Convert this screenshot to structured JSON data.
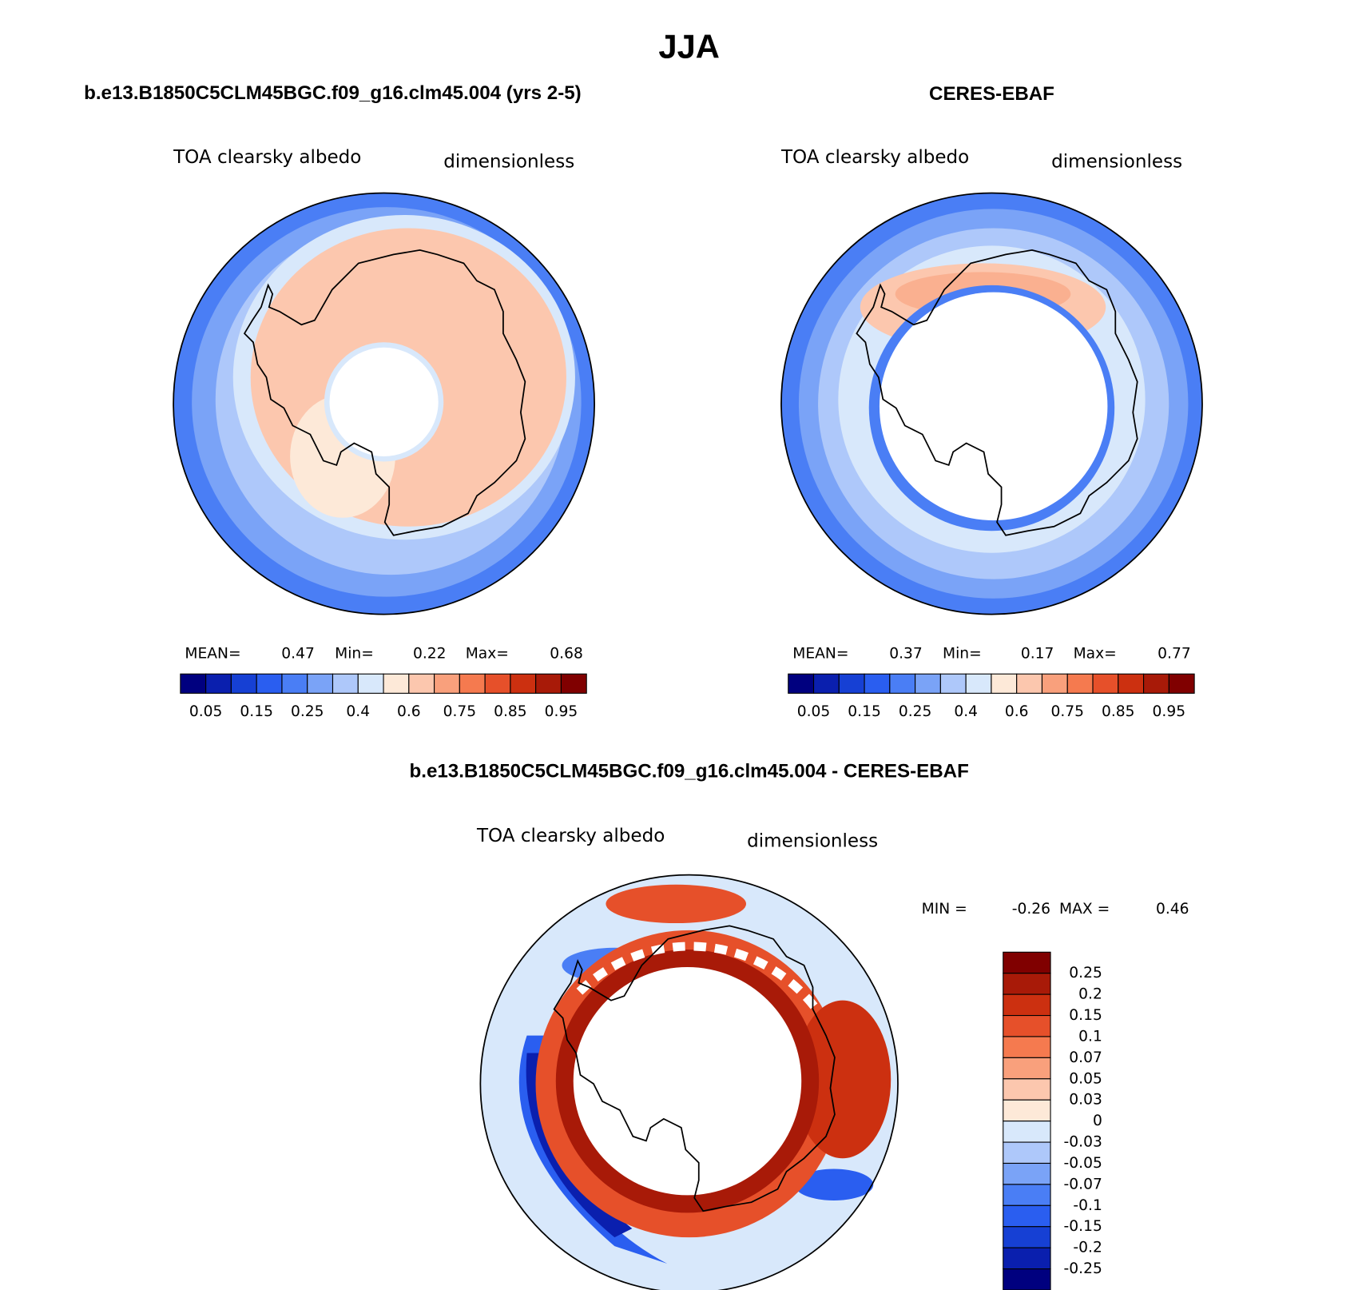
{
  "title": "JJA",
  "panels": [
    {
      "title": "b.e13.B1850C5CLM45BGC.f09_g16.clm45.004 (yrs 2-5)",
      "variable": "TOA clearsky albedo",
      "units": "dimensionless",
      "stats": {
        "mean_label": "MEAN=",
        "mean": 0.47,
        "min_label": "Min=",
        "min": 0.22,
        "max_label": "Max=",
        "max": 0.68
      },
      "colorbar": {
        "colors": [
          "#00007f",
          "#0a1fae",
          "#1640d4",
          "#2a5ef0",
          "#4a7ef5",
          "#7aa3f7",
          "#aec8fa",
          "#d8e8fb",
          "#fde9d8",
          "#fcc7ae",
          "#f9a07c",
          "#f57a4f",
          "#e6502a",
          "#cc3010",
          "#a81a08",
          "#800000"
        ],
        "labels": [
          0.05,
          0.15,
          0.25,
          0.4,
          0.6,
          0.75,
          0.85,
          0.95
        ]
      }
    },
    {
      "title": "CERES-EBAF",
      "variable": "TOA clearsky albedo",
      "units": "dimensionless",
      "stats": {
        "mean_label": "MEAN=",
        "mean": 0.37,
        "min_label": "Min=",
        "min": 0.17,
        "max_label": "Max=",
        "max": 0.77
      },
      "colorbar": {
        "colors": [
          "#00007f",
          "#0a1fae",
          "#1640d4",
          "#2a5ef0",
          "#4a7ef5",
          "#7aa3f7",
          "#aec8fa",
          "#d8e8fb",
          "#fde9d8",
          "#fcc7ae",
          "#f9a07c",
          "#f57a4f",
          "#e6502a",
          "#cc3010",
          "#a81a08",
          "#800000"
        ],
        "labels": [
          0.05,
          0.15,
          0.25,
          0.4,
          0.6,
          0.75,
          0.85,
          0.95
        ]
      }
    }
  ],
  "difference": {
    "title": "b.e13.B1850C5CLM45BGC.f09_g16.clm45.004 - CERES-EBAF",
    "variable": "TOA clearsky albedo",
    "units": "dimensionless",
    "min_label": "MIN =",
    "min": -0.26,
    "max_label": "MAX =",
    "max": 0.46,
    "colorbar": {
      "colors": [
        "#800000",
        "#a81a08",
        "#cc3010",
        "#e6502a",
        "#f57a4f",
        "#f9a07c",
        "#fcc7ae",
        "#fde9d8",
        "#d8e8fb",
        "#aec8fa",
        "#7aa3f7",
        "#4a7ef5",
        "#2a5ef0",
        "#1640d4",
        "#0a1fae",
        "#00007f"
      ],
      "labels": [
        0.25,
        0.2,
        0.15,
        0.1,
        0.07,
        0.05,
        0.03,
        0,
        -0.03,
        -0.05,
        -0.07,
        -0.1,
        -0.15,
        -0.2,
        -0.25
      ]
    }
  }
}
